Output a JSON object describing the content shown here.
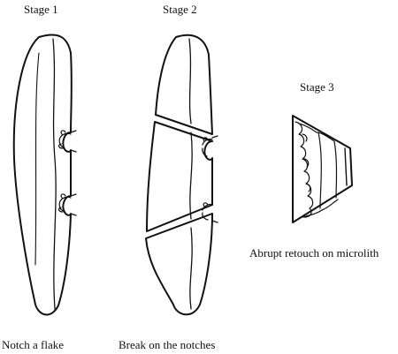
{
  "stages": {
    "stage1": {
      "title": "Stage 1",
      "caption": "Notch a flake"
    },
    "stage2": {
      "title": "Stage 2",
      "caption": "Break on the notches"
    },
    "stage3": {
      "title": "Stage 3",
      "caption": "Abrupt retouch on microlith"
    }
  },
  "colors": {
    "line": "#111111",
    "background": "#ffffff"
  }
}
